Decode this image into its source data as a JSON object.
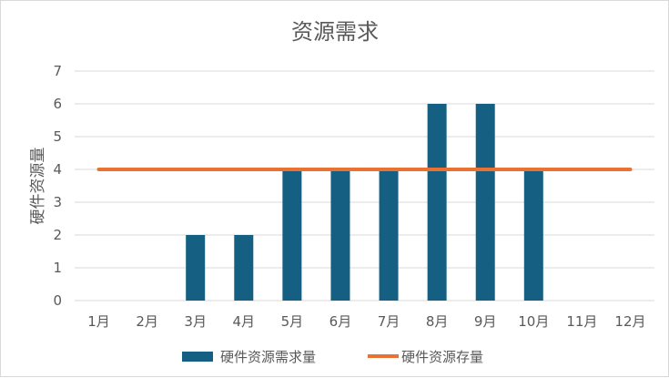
{
  "chart_data": {
    "type": "bar",
    "title": "资源需求",
    "ylabel": "硬件资源量",
    "xlabel": "",
    "categories": [
      "1月",
      "2月",
      "3月",
      "4月",
      "5月",
      "6月",
      "7月",
      "8月",
      "9月",
      "10月",
      "11月",
      "12月"
    ],
    "ylim": [
      0,
      7
    ],
    "yticks": [
      0,
      1,
      2,
      3,
      4,
      5,
      6,
      7
    ],
    "grid": true,
    "legend_position": "bottom",
    "series": [
      {
        "name": "硬件资源需求量",
        "type": "bar",
        "values": [
          0,
          0,
          2,
          2,
          4,
          4,
          4,
          6,
          6,
          4,
          0,
          0
        ],
        "color": "#156082"
      },
      {
        "name": "硬件资源存量",
        "type": "line",
        "values": [
          4,
          4,
          4,
          4,
          4,
          4,
          4,
          4,
          4,
          4,
          4,
          4
        ],
        "color": "#e97132"
      }
    ]
  }
}
